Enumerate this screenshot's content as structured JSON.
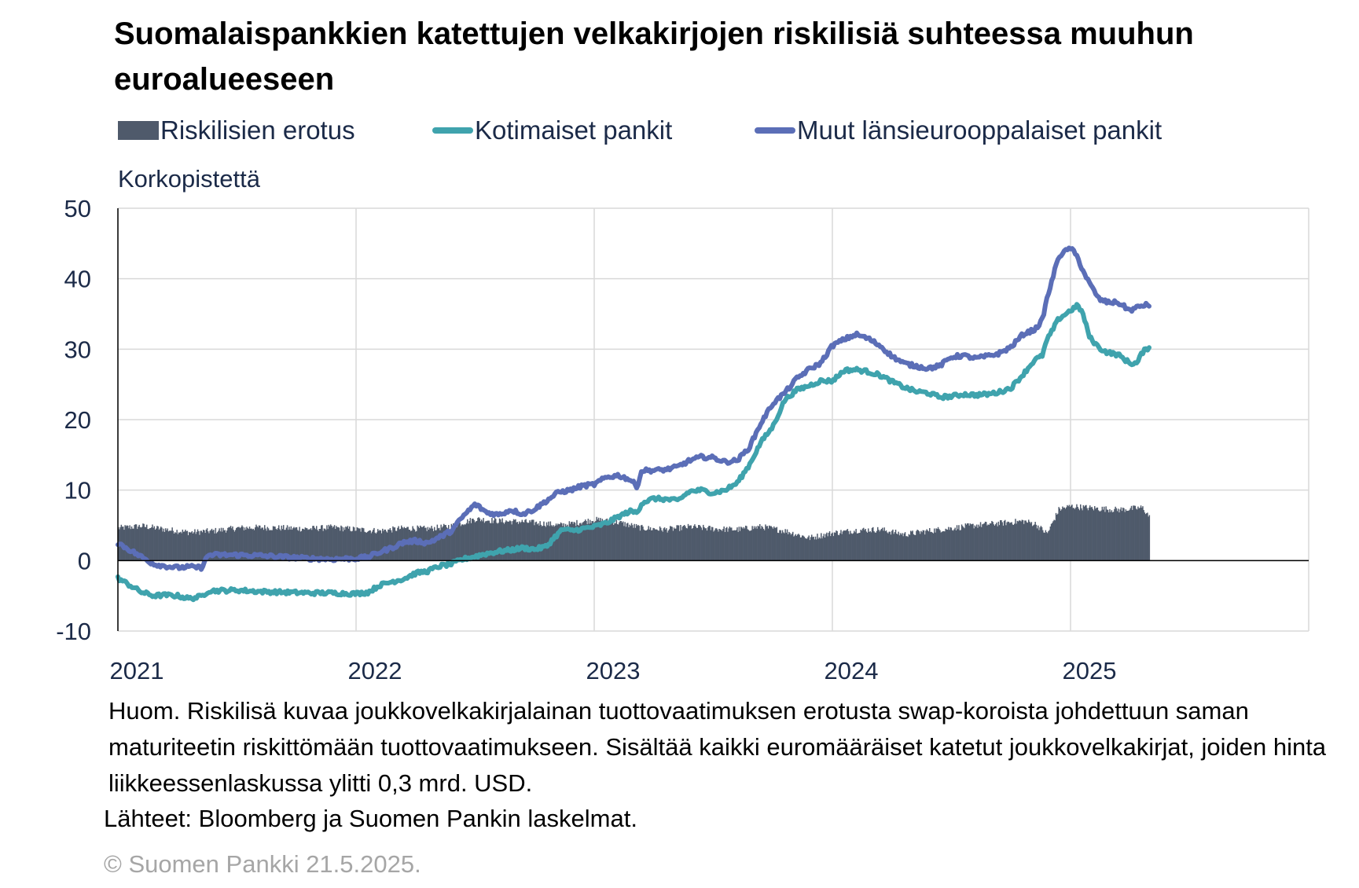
{
  "title": "Suomalaispankkien katettujen velkakirjojen riskilisiä suhteessa muuhun euroalueeseen",
  "ylabel": "Korkopistettä",
  "note": "Huom. Riskilisä kuvaa joukkovelkakirjalainan tuottovaatimuksen erotusta swap-koroista johdettuun saman maturiteetin riskittömään tuottovaatimukseen. Sisältää kaikki euromääräiset katetut joukkovelkakirjat, joiden hinta liikkeessenlaskussa ylitti 0,3 mrd.  USD.",
  "source": "Lähteet: Bloomberg ja Suomen Pankin laskelmat.",
  "copyright": "© Suomen Pankki 21.5.2025.",
  "chart_data": {
    "type": "line",
    "x_unit": "year",
    "x_ticks": [
      2021,
      2022,
      2023,
      2024,
      2025
    ],
    "x_tick_labels": [
      "2021",
      "2022",
      "2023",
      "2024",
      "2025"
    ],
    "xlim": [
      2021,
      2026
    ],
    "ylim": [
      -10,
      50
    ],
    "y_ticks": [
      -10,
      0,
      10,
      20,
      30,
      40,
      50
    ],
    "y_tick_labels": [
      "-10",
      "0",
      "10",
      "20",
      "30",
      "40",
      "50"
    ],
    "grid": true,
    "legend_position": "top",
    "series": [
      {
        "name": "Riskilisien erotus",
        "kind": "bar",
        "color": "#4f5a6b",
        "points": [
          [
            2021.0,
            4.6
          ],
          [
            2021.1,
            4.9
          ],
          [
            2021.2,
            4.4
          ],
          [
            2021.3,
            4.0
          ],
          [
            2021.4,
            4.2
          ],
          [
            2021.5,
            4.6
          ],
          [
            2021.6,
            4.7
          ],
          [
            2021.7,
            4.6
          ],
          [
            2021.8,
            4.5
          ],
          [
            2021.9,
            4.7
          ],
          [
            2022.0,
            4.4
          ],
          [
            2022.1,
            4.2
          ],
          [
            2022.2,
            4.6
          ],
          [
            2022.3,
            4.5
          ],
          [
            2022.4,
            4.9
          ],
          [
            2022.5,
            5.9
          ],
          [
            2022.6,
            5.6
          ],
          [
            2022.7,
            5.5
          ],
          [
            2022.8,
            5.2
          ],
          [
            2022.85,
            5.0
          ],
          [
            2022.9,
            5.2
          ],
          [
            2023.0,
            5.8
          ],
          [
            2023.1,
            5.4
          ],
          [
            2023.2,
            4.6
          ],
          [
            2023.3,
            4.4
          ],
          [
            2023.4,
            4.8
          ],
          [
            2023.5,
            4.5
          ],
          [
            2023.6,
            4.4
          ],
          [
            2023.7,
            4.8
          ],
          [
            2023.8,
            4.2
          ],
          [
            2023.9,
            3.2
          ],
          [
            2024.0,
            3.9
          ],
          [
            2024.1,
            4.3
          ],
          [
            2024.2,
            4.4
          ],
          [
            2024.3,
            3.7
          ],
          [
            2024.4,
            4.2
          ],
          [
            2024.5,
            4.6
          ],
          [
            2024.6,
            5.0
          ],
          [
            2024.7,
            5.3
          ],
          [
            2024.8,
            5.6
          ],
          [
            2024.85,
            5.2
          ],
          [
            2024.9,
            3.8
          ],
          [
            2024.95,
            7.3
          ],
          [
            2025.0,
            7.7
          ],
          [
            2025.1,
            7.4
          ],
          [
            2025.2,
            7.2
          ],
          [
            2025.3,
            7.5
          ],
          [
            2025.33,
            6.2
          ]
        ]
      },
      {
        "name": "Kotimaiset pankit",
        "kind": "line",
        "color": "#3fa3ad",
        "points": [
          [
            2021.0,
            -2.5
          ],
          [
            2021.05,
            -3.5
          ],
          [
            2021.1,
            -4.5
          ],
          [
            2021.15,
            -5.0
          ],
          [
            2021.2,
            -4.9
          ],
          [
            2021.25,
            -5.0
          ],
          [
            2021.3,
            -5.4
          ],
          [
            2021.35,
            -5.1
          ],
          [
            2021.38,
            -4.3
          ],
          [
            2021.5,
            -4.2
          ],
          [
            2021.6,
            -4.4
          ],
          [
            2021.7,
            -4.5
          ],
          [
            2021.8,
            -4.6
          ],
          [
            2021.9,
            -4.6
          ],
          [
            2022.0,
            -4.7
          ],
          [
            2022.05,
            -4.5
          ],
          [
            2022.1,
            -3.5
          ],
          [
            2022.15,
            -3.0
          ],
          [
            2022.2,
            -2.6
          ],
          [
            2022.25,
            -1.8
          ],
          [
            2022.3,
            -1.5
          ],
          [
            2022.35,
            -0.8
          ],
          [
            2022.4,
            -0.5
          ],
          [
            2022.45,
            0.2
          ],
          [
            2022.5,
            0.6
          ],
          [
            2022.55,
            1.0
          ],
          [
            2022.6,
            1.3
          ],
          [
            2022.65,
            1.5
          ],
          [
            2022.7,
            1.8
          ],
          [
            2022.75,
            1.6
          ],
          [
            2022.8,
            2.0
          ],
          [
            2022.83,
            3.2
          ],
          [
            2022.87,
            4.5
          ],
          [
            2022.9,
            4.2
          ],
          [
            2022.95,
            4.5
          ],
          [
            2023.0,
            4.8
          ],
          [
            2023.05,
            5.3
          ],
          [
            2023.1,
            6.2
          ],
          [
            2023.15,
            7.0
          ],
          [
            2023.18,
            6.8
          ],
          [
            2023.2,
            8.2
          ],
          [
            2023.25,
            8.8
          ],
          [
            2023.3,
            8.7
          ],
          [
            2023.35,
            8.5
          ],
          [
            2023.4,
            9.8
          ],
          [
            2023.45,
            10.0
          ],
          [
            2023.5,
            9.6
          ],
          [
            2023.55,
            10.0
          ],
          [
            2023.6,
            11.0
          ],
          [
            2023.65,
            13.5
          ],
          [
            2023.7,
            16.8
          ],
          [
            2023.75,
            19.0
          ],
          [
            2023.8,
            22.8
          ],
          [
            2023.85,
            24.2
          ],
          [
            2023.9,
            24.8
          ],
          [
            2023.95,
            25.5
          ],
          [
            2024.0,
            25.5
          ],
          [
            2024.05,
            27.0
          ],
          [
            2024.1,
            27.1
          ],
          [
            2024.15,
            26.8
          ],
          [
            2024.2,
            26.3
          ],
          [
            2024.25,
            25.4
          ],
          [
            2024.3,
            24.6
          ],
          [
            2024.35,
            24.0
          ],
          [
            2024.4,
            23.8
          ],
          [
            2024.45,
            23.2
          ],
          [
            2024.5,
            23.3
          ],
          [
            2024.55,
            23.6
          ],
          [
            2024.6,
            23.5
          ],
          [
            2024.65,
            23.6
          ],
          [
            2024.7,
            23.9
          ],
          [
            2024.75,
            24.5
          ],
          [
            2024.8,
            26.4
          ],
          [
            2024.85,
            28.5
          ],
          [
            2024.88,
            29.0
          ],
          [
            2024.9,
            31.2
          ],
          [
            2024.95,
            34.3
          ],
          [
            2025.0,
            35.5
          ],
          [
            2025.03,
            36.2
          ],
          [
            2025.05,
            35.2
          ],
          [
            2025.08,
            31.7
          ],
          [
            2025.12,
            30.2
          ],
          [
            2025.15,
            29.6
          ],
          [
            2025.2,
            29.2
          ],
          [
            2025.25,
            28.0
          ],
          [
            2025.28,
            28.0
          ],
          [
            2025.3,
            29.5
          ],
          [
            2025.33,
            30.3
          ]
        ]
      },
      {
        "name": "Muut länsieurooppalaiset pankit",
        "kind": "line",
        "color": "#5b6eb7",
        "points": [
          [
            2021.0,
            2.5
          ],
          [
            2021.05,
            1.5
          ],
          [
            2021.1,
            0.5
          ],
          [
            2021.15,
            -0.5
          ],
          [
            2021.2,
            -0.8
          ],
          [
            2021.25,
            -1.0
          ],
          [
            2021.3,
            -0.9
          ],
          [
            2021.35,
            -1.0
          ],
          [
            2021.38,
            0.8
          ],
          [
            2021.5,
            0.8
          ],
          [
            2021.6,
            0.7
          ],
          [
            2021.7,
            0.5
          ],
          [
            2021.8,
            0.3
          ],
          [
            2021.9,
            0.2
          ],
          [
            2022.0,
            0.3
          ],
          [
            2022.05,
            0.5
          ],
          [
            2022.1,
            1.2
          ],
          [
            2022.15,
            1.8
          ],
          [
            2022.2,
            2.6
          ],
          [
            2022.25,
            2.8
          ],
          [
            2022.3,
            2.5
          ],
          [
            2022.35,
            3.3
          ],
          [
            2022.4,
            4.2
          ],
          [
            2022.45,
            6.3
          ],
          [
            2022.5,
            8.0
          ],
          [
            2022.55,
            6.8
          ],
          [
            2022.6,
            6.5
          ],
          [
            2022.65,
            7.2
          ],
          [
            2022.7,
            6.6
          ],
          [
            2022.75,
            7.3
          ],
          [
            2022.8,
            8.5
          ],
          [
            2022.85,
            9.7
          ],
          [
            2022.9,
            10.0
          ],
          [
            2022.95,
            10.6
          ],
          [
            2023.0,
            10.8
          ],
          [
            2023.05,
            11.8
          ],
          [
            2023.1,
            12.1
          ],
          [
            2023.15,
            11.5
          ],
          [
            2023.18,
            10.5
          ],
          [
            2023.2,
            12.8
          ],
          [
            2023.25,
            12.8
          ],
          [
            2023.3,
            12.9
          ],
          [
            2023.35,
            13.3
          ],
          [
            2023.4,
            14.2
          ],
          [
            2023.45,
            14.7
          ],
          [
            2023.5,
            14.6
          ],
          [
            2023.55,
            14.0
          ],
          [
            2023.6,
            14.2
          ],
          [
            2023.65,
            16.0
          ],
          [
            2023.7,
            19.5
          ],
          [
            2023.75,
            22.3
          ],
          [
            2023.8,
            23.8
          ],
          [
            2023.85,
            25.8
          ],
          [
            2023.9,
            27.1
          ],
          [
            2023.95,
            28.0
          ],
          [
            2024.0,
            30.5
          ],
          [
            2024.05,
            31.4
          ],
          [
            2024.1,
            32.1
          ],
          [
            2024.15,
            31.5
          ],
          [
            2024.2,
            30.5
          ],
          [
            2024.25,
            29.0
          ],
          [
            2024.3,
            28.0
          ],
          [
            2024.35,
            27.6
          ],
          [
            2024.4,
            27.3
          ],
          [
            2024.45,
            27.6
          ],
          [
            2024.5,
            28.9
          ],
          [
            2024.55,
            29.1
          ],
          [
            2024.6,
            28.7
          ],
          [
            2024.65,
            29.0
          ],
          [
            2024.7,
            29.4
          ],
          [
            2024.75,
            30.3
          ],
          [
            2024.8,
            32.1
          ],
          [
            2024.85,
            32.8
          ],
          [
            2024.88,
            34.0
          ],
          [
            2024.9,
            37.0
          ],
          [
            2024.95,
            43.2
          ],
          [
            2025.0,
            44.4
          ],
          [
            2025.03,
            43.0
          ],
          [
            2025.05,
            41.3
          ],
          [
            2025.08,
            39.3
          ],
          [
            2025.12,
            37.1
          ],
          [
            2025.15,
            36.7
          ],
          [
            2025.2,
            36.6
          ],
          [
            2025.25,
            35.5
          ],
          [
            2025.3,
            36.2
          ],
          [
            2025.33,
            36.3
          ]
        ]
      }
    ]
  }
}
